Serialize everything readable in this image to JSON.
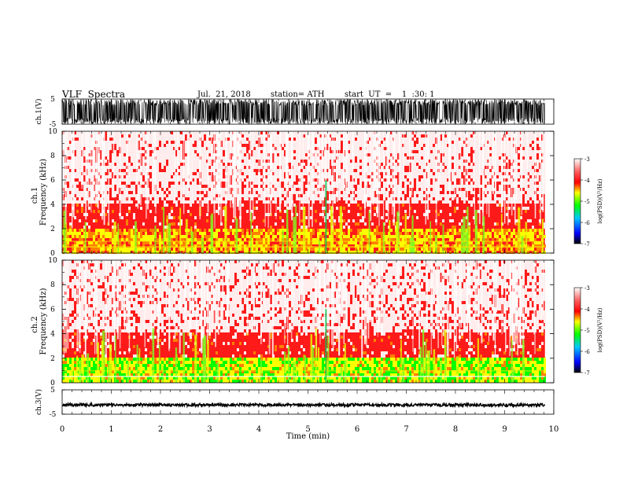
{
  "header": {
    "title": "VLF  Spectra",
    "date": "Jul.  21, 2018",
    "station": "station= ATH",
    "start": "start  UT  =    1  :30: 1"
  },
  "chart_data": [
    {
      "type": "line",
      "name": "ch1-waveform",
      "ylabel": "ch.1(V)",
      "ylim": [
        -5,
        5
      ],
      "yticks": [
        5,
        -5
      ],
      "xlim": [
        0,
        10
      ],
      "x_end": 9.82,
      "description_values": {
        "typical_amplitude_V": [
          -5,
          5
        ]
      }
    },
    {
      "type": "heatmap",
      "name": "ch1-spectrogram",
      "ylabel": "Frequency  (kHz)",
      "channel_label": "ch.1",
      "ylim": [
        0,
        10
      ],
      "yticks": [
        0,
        2,
        4,
        6,
        8,
        10
      ],
      "xlim": [
        0,
        10
      ],
      "x_end": 9.82,
      "colorbar": {
        "label": "log(PSD)(V²/Hz)",
        "range": [
          -7,
          -3
        ],
        "ticks": [
          -3,
          -4,
          -5,
          -6,
          -7
        ]
      },
      "bands": [
        {
          "fmin": 0,
          "fmax": 2,
          "level": -4.4
        },
        {
          "fmin": 2,
          "fmax": 4,
          "level": -3.8
        },
        {
          "fmin": 4,
          "fmax": 10,
          "level": -3.3
        }
      ]
    },
    {
      "type": "heatmap",
      "name": "ch2-spectrogram",
      "ylabel": "Frequency  (kHz)",
      "channel_label": "ch.2",
      "ylim": [
        0,
        10
      ],
      "yticks": [
        0,
        2,
        4,
        6,
        8,
        10
      ],
      "xlim": [
        0,
        10
      ],
      "x_end": 9.82,
      "colorbar": {
        "label": "log(PSD)(V²/Hz)",
        "range": [
          -7,
          -3
        ],
        "ticks": [
          -3,
          -4,
          -5,
          -6,
          -7
        ]
      },
      "bands": [
        {
          "fmin": 0,
          "fmax": 2,
          "level": -4.8
        },
        {
          "fmin": 2,
          "fmax": 4,
          "level": -3.8
        },
        {
          "fmin": 4,
          "fmax": 10,
          "level": -3.3
        }
      ]
    },
    {
      "type": "line",
      "name": "ch3-waveform",
      "ylabel": "ch.3(V)",
      "ylim": [
        -5,
        5
      ],
      "yticks": [
        5,
        -5
      ],
      "xlim": [
        0,
        10
      ],
      "x_end": 9.82,
      "description_values": {
        "typical_amplitude_V": [
          -0.3,
          0.3
        ]
      }
    }
  ],
  "xaxis": {
    "label": "Time  (min)",
    "ticks": [
      "0",
      "1",
      "2",
      "3",
      "4",
      "5",
      "6",
      "7",
      "8",
      "9",
      "10"
    ]
  },
  "colorscale": [
    "#000000",
    "#0000ff",
    "#00c8ff",
    "#00ff00",
    "#ffff00",
    "#ff8000",
    "#ff0000",
    "#ffffff"
  ]
}
